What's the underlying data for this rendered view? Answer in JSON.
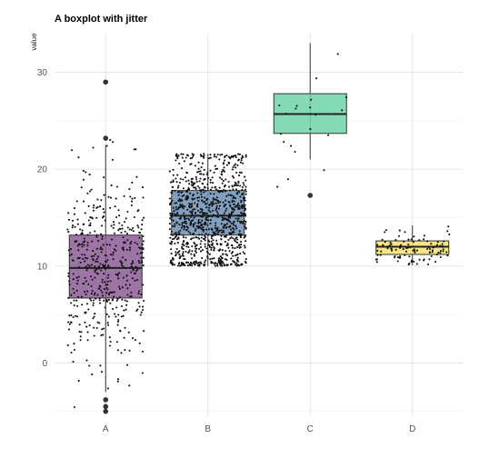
{
  "chart_data": {
    "type": "boxplot",
    "title": "A boxplot with jitter",
    "xlabel": "",
    "ylabel": "value",
    "categories": [
      "A",
      "B",
      "C",
      "D"
    ],
    "y_ticks": [
      0,
      10,
      20,
      30
    ],
    "ylim": [
      -5.5,
      34
    ],
    "grid": true,
    "jitter_points_overlay": true,
    "boxes": [
      {
        "name": "A",
        "color": "#8C5C95",
        "n": 500,
        "q1": 6.7,
        "median": 9.8,
        "q3": 13.2,
        "whisker_low": -3.0,
        "whisker_high": 22.5,
        "outliers": [
          29.0,
          23.2,
          -3.8,
          -4.5,
          -5.0
        ]
      },
      {
        "name": "B",
        "color": "#6B8FB5",
        "n": 1000,
        "q1": 13.2,
        "median": 15.2,
        "q3": 17.8,
        "whisker_low": 10.0,
        "whisker_high": 21.6,
        "outliers": []
      },
      {
        "name": "C",
        "color": "#6ED3A8",
        "n": 20,
        "q1": 23.7,
        "median": 25.7,
        "q3": 27.8,
        "whisker_low": 21.0,
        "whisker_high": 33.0,
        "outliers": [
          17.3
        ]
      },
      {
        "name": "D",
        "color": "#F7E26B",
        "n": 100,
        "q1": 11.2,
        "median": 12.0,
        "q3": 12.6,
        "whisker_low": 10.1,
        "whisker_high": 14.2,
        "outliers": []
      }
    ]
  }
}
